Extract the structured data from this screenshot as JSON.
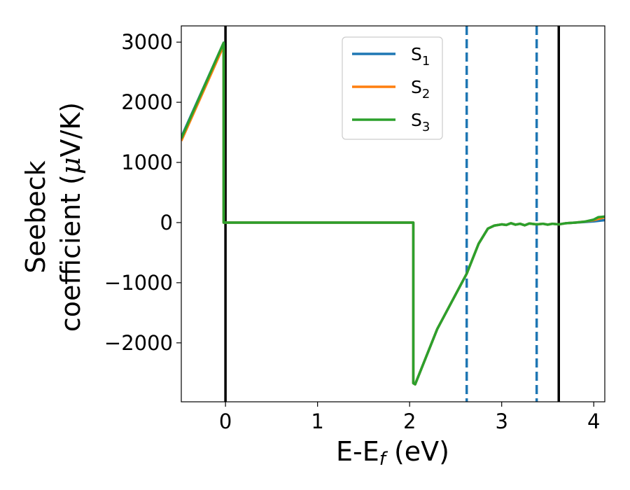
{
  "chart_data": {
    "type": "line",
    "xlabel": "E-E",
    "xlabel_sub": "f",
    "xlabel_unit": " (eV)",
    "ylabel_line1": "Seebeck",
    "ylabel_line2": "coefficient  (",
    "ylabel_mu": "μ",
    "ylabel_line2_end": "V/K)",
    "xlim": [
      -0.48,
      4.12
    ],
    "ylim": [
      -2980,
      3270
    ],
    "xticks": [
      0,
      1,
      2,
      3,
      4
    ],
    "yticks": [
      -2000,
      -1000,
      0,
      1000,
      2000,
      3000
    ],
    "xtick_labels": [
      "0",
      "1",
      "2",
      "3",
      "4"
    ],
    "ytick_labels": [
      "−2000",
      "−1000",
      "0",
      "1000",
      "2000",
      "3000"
    ],
    "grid": false,
    "legend_position": "top-center",
    "vertical_lines": [
      {
        "x": 0.0,
        "style": "solid",
        "color": "#000000"
      },
      {
        "x": 3.62,
        "style": "solid",
        "color": "#000000"
      },
      {
        "x": 2.62,
        "style": "dashed",
        "color": "#1f77b4"
      },
      {
        "x": 3.38,
        "style": "dashed",
        "color": "#1f77b4"
      }
    ],
    "series": [
      {
        "name": "S",
        "sub": "1",
        "color": "#1f77b4",
        "x": [
          -0.48,
          -0.02,
          -0.02,
          2.04,
          2.04,
          2.06,
          2.3,
          2.62,
          2.75,
          2.85,
          2.92,
          3.0,
          3.05,
          3.1,
          3.15,
          3.2,
          3.25,
          3.3,
          3.38,
          3.45,
          3.5,
          3.55,
          3.62,
          3.7,
          3.8,
          3.9,
          4.0,
          4.12
        ],
        "y": [
          1420,
          2990,
          0,
          0,
          -2670,
          -2690,
          -1770,
          -850,
          -350,
          -100,
          -50,
          -30,
          -40,
          -10,
          -35,
          -20,
          -45,
          -15,
          -30,
          -20,
          -35,
          -20,
          -30,
          -10,
          0,
          10,
          20,
          40
        ]
      },
      {
        "name": "S",
        "sub": "2",
        "color": "#ff7f0e",
        "x": [
          -0.48,
          -0.02,
          -0.02,
          2.04,
          2.04,
          2.06,
          2.3,
          2.62,
          2.75,
          2.85,
          2.92,
          3.0,
          3.05,
          3.1,
          3.15,
          3.2,
          3.25,
          3.3,
          3.38,
          3.45,
          3.5,
          3.55,
          3.62,
          3.7,
          3.8,
          3.9,
          4.0,
          4.12
        ],
        "y": [
          1360,
          2940,
          0,
          0,
          -2670,
          -2690,
          -1770,
          -850,
          -350,
          -100,
          -50,
          -30,
          -40,
          -10,
          -35,
          -20,
          -45,
          -15,
          -30,
          -20,
          -35,
          -20,
          -30,
          -10,
          0,
          15,
          40,
          90
        ]
      },
      {
        "name": "S",
        "sub": "3",
        "color": "#2ca02c",
        "x": [
          -0.48,
          -0.02,
          -0.02,
          2.04,
          2.04,
          2.06,
          2.3,
          2.62,
          2.75,
          2.85,
          2.92,
          3.0,
          3.05,
          3.1,
          3.15,
          3.2,
          3.25,
          3.3,
          3.38,
          3.45,
          3.5,
          3.55,
          3.62,
          3.7,
          3.8,
          3.9,
          4.0,
          4.05,
          4.12
        ],
        "y": [
          1400,
          2990,
          0,
          0,
          -2670,
          -2690,
          -1770,
          -850,
          -350,
          -100,
          -50,
          -30,
          -40,
          -10,
          -35,
          -20,
          -45,
          -15,
          -30,
          -20,
          -35,
          -20,
          -30,
          -10,
          0,
          15,
          50,
          90,
          100
        ]
      }
    ]
  }
}
